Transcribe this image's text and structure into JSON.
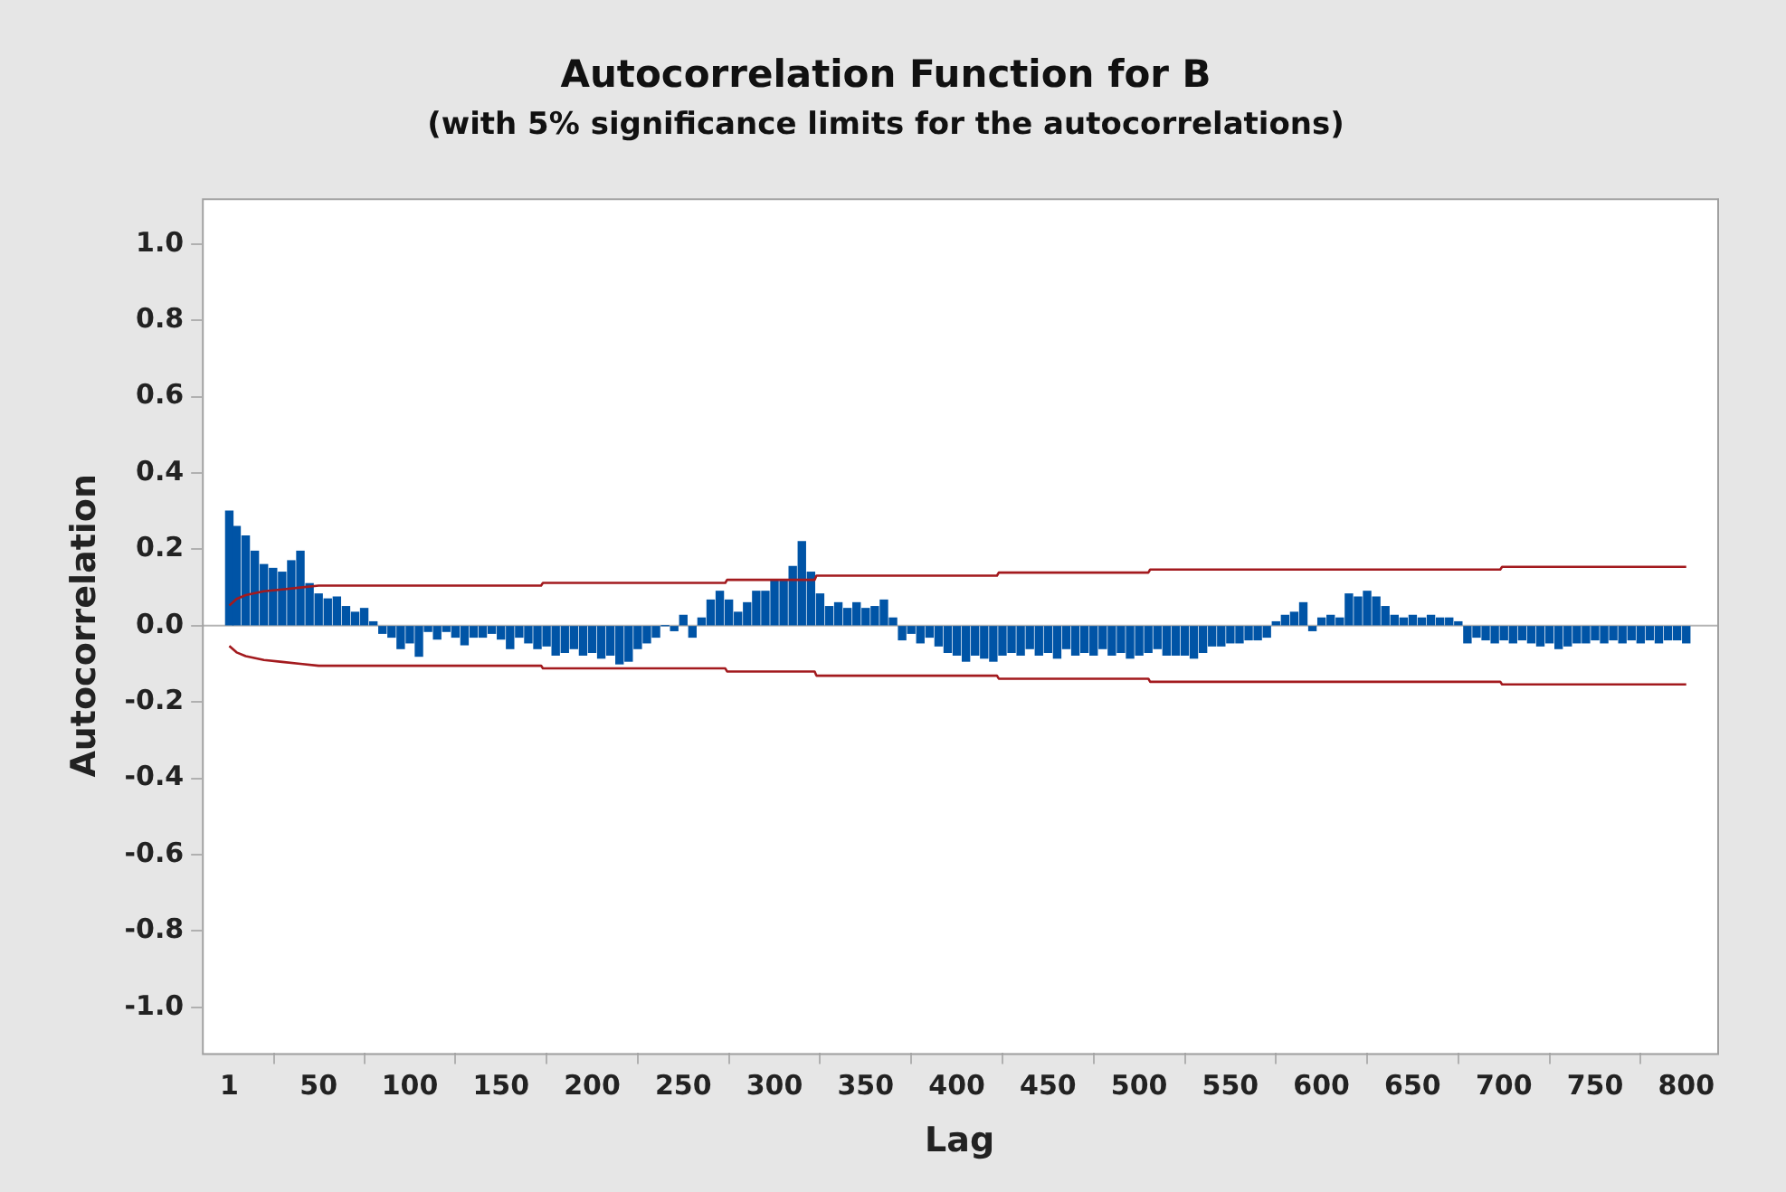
{
  "chart_data": {
    "type": "bar",
    "title": "Autocorrelation Function for B",
    "subtitle": "(with 5% significance limits for the autocorrelations)",
    "xlabel": "Lag",
    "ylabel": "Autocorrelation",
    "xlim": [
      -14,
      817
    ],
    "xticks": [
      1,
      50,
      100,
      150,
      200,
      250,
      300,
      350,
      400,
      450,
      500,
      550,
      600,
      650,
      700,
      750,
      800
    ],
    "ylim": [
      -1.12,
      1.12
    ],
    "yticks": [
      {
        "value": -1,
        "label": "-1.0"
      },
      {
        "value": -0.8,
        "label": "-0.8"
      },
      {
        "value": -0.6,
        "label": "-0.6"
      },
      {
        "value": -0.4,
        "label": "-0.4"
      },
      {
        "value": -0.2,
        "label": "-0.2"
      },
      {
        "value": 0,
        "label": "0.0"
      },
      {
        "value": 0.2,
        "label": "0.2"
      },
      {
        "value": 0.4,
        "label": "0.4"
      },
      {
        "value": 0.6,
        "label": "0.6"
      },
      {
        "value": 0.8,
        "label": "0.8"
      },
      {
        "value": 1,
        "label": "1.0"
      }
    ],
    "grid": false,
    "legend": false,
    "marker": "none",
    "ref_lines": [
      {
        "axis": "y",
        "value": 0,
        "color": "#b4b4b4"
      }
    ],
    "series": [
      {
        "color": "#0054a6",
        "x": [
          1,
          5,
          10,
          15,
          20,
          25,
          30,
          35,
          40,
          45,
          50,
          55,
          60,
          65,
          70,
          75,
          80,
          85,
          90,
          95,
          100,
          105,
          110,
          115,
          120,
          125,
          130,
          135,
          140,
          145,
          150,
          155,
          160,
          165,
          170,
          175,
          180,
          185,
          190,
          195,
          200,
          205,
          210,
          215,
          220,
          225,
          230,
          235,
          240,
          245,
          250,
          255,
          260,
          265,
          270,
          275,
          280,
          285,
          290,
          295,
          300,
          305,
          310,
          315,
          320,
          325,
          330,
          335,
          340,
          345,
          350,
          355,
          360,
          365,
          370,
          375,
          380,
          385,
          390,
          395,
          400,
          405,
          410,
          415,
          420,
          425,
          430,
          435,
          440,
          445,
          450,
          455,
          460,
          465,
          470,
          475,
          480,
          485,
          490,
          495,
          500,
          505,
          510,
          515,
          520,
          525,
          530,
          535,
          540,
          545,
          550,
          555,
          560,
          565,
          570,
          575,
          580,
          585,
          590,
          595,
          600,
          605,
          610,
          615,
          620,
          625,
          630,
          635,
          640,
          645,
          650,
          655,
          660,
          665,
          670,
          675,
          680,
          685,
          690,
          695,
          700,
          705,
          710,
          715,
          720,
          725,
          730,
          735,
          740,
          745,
          750,
          755,
          760,
          765,
          770,
          775,
          780,
          785,
          790,
          795,
          800
        ],
        "values": [
          0.3,
          0.26,
          0.235,
          0.195,
          0.16,
          0.15,
          0.14,
          0.17,
          0.195,
          0.11,
          0.083,
          0.07,
          0.075,
          0.05,
          0.035,
          0.045,
          0.01,
          -0.02,
          -0.03,
          -0.06,
          -0.045,
          -0.08,
          -0.015,
          -0.035,
          -0.015,
          -0.03,
          -0.05,
          -0.03,
          -0.03,
          -0.02,
          -0.035,
          -0.06,
          -0.03,
          -0.045,
          -0.06,
          -0.053,
          -0.077,
          -0.07,
          -0.06,
          -0.077,
          -0.07,
          -0.085,
          -0.077,
          -0.1,
          -0.093,
          -0.06,
          -0.045,
          -0.03,
          0,
          -0.013,
          0.027,
          -0.03,
          0.02,
          0.067,
          0.09,
          0.067,
          0.035,
          0.06,
          0.09,
          0.09,
          0.12,
          0.12,
          0.155,
          0.22,
          0.14,
          0.083,
          0.05,
          0.06,
          0.045,
          0.06,
          0.045,
          0.05,
          0.067,
          0.02,
          -0.037,
          -0.02,
          -0.045,
          -0.03,
          -0.053,
          -0.07,
          -0.077,
          -0.093,
          -0.077,
          -0.085,
          -0.093,
          -0.077,
          -0.07,
          -0.077,
          -0.06,
          -0.077,
          -0.07,
          -0.085,
          -0.06,
          -0.077,
          -0.07,
          -0.077,
          -0.06,
          -0.077,
          -0.07,
          -0.085,
          -0.077,
          -0.07,
          -0.06,
          -0.077,
          -0.077,
          -0.077,
          -0.085,
          -0.07,
          -0.053,
          -0.053,
          -0.045,
          -0.045,
          -0.037,
          -0.037,
          -0.03,
          0.01,
          0.027,
          0.035,
          0.06,
          -0.013,
          0.02,
          0.027,
          0.02,
          0.083,
          0.075,
          0.09,
          0.075,
          0.05,
          0.027,
          0.02,
          0.027,
          0.02,
          0.027,
          0.02,
          0.02,
          0.01,
          -0.045,
          -0.03,
          -0.037,
          -0.045,
          -0.037,
          -0.045,
          -0.037,
          -0.045,
          -0.053,
          -0.045,
          -0.06,
          -0.053,
          -0.045,
          -0.045,
          -0.037,
          -0.045,
          -0.037,
          -0.045,
          -0.037,
          -0.045,
          -0.037,
          -0.045,
          -0.037,
          -0.037,
          -0.045
        ]
      },
      {
        "type": "line",
        "color": "#a31a1e",
        "x": [
          1,
          5,
          10,
          20,
          30,
          40,
          50,
          172,
          173,
          273,
          274,
          322,
          323,
          422,
          423,
          505,
          506,
          698,
          699,
          800
        ],
        "values": [
          0.053,
          0.07,
          0.08,
          0.09,
          0.095,
          0.1,
          0.105,
          0.105,
          0.112,
          0.112,
          0.12,
          0.12,
          0.131,
          0.131,
          0.139,
          0.139,
          0.147,
          0.147,
          0.154,
          0.154
        ]
      },
      {
        "type": "line",
        "color": "#a31a1e",
        "x": [
          1,
          5,
          10,
          20,
          30,
          40,
          50,
          172,
          173,
          273,
          274,
          322,
          323,
          422,
          423,
          505,
          506,
          698,
          699,
          800
        ],
        "values": [
          -0.053,
          -0.07,
          -0.08,
          -0.09,
          -0.095,
          -0.1,
          -0.105,
          -0.105,
          -0.112,
          -0.112,
          -0.12,
          -0.12,
          -0.131,
          -0.131,
          -0.139,
          -0.139,
          -0.147,
          -0.147,
          -0.154,
          -0.154
        ]
      }
    ]
  }
}
